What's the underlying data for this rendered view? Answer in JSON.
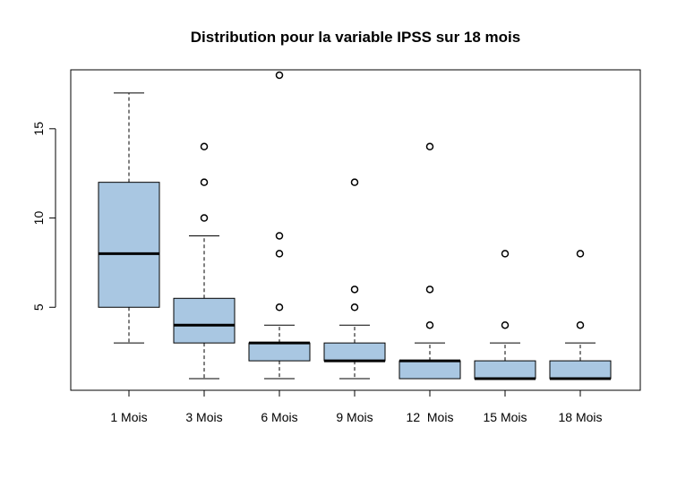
{
  "chart_data": {
    "type": "boxplot",
    "title": "Distribution pour la variable IPSS sur 18 mois",
    "xlabel": "",
    "ylabel": "",
    "ylim": [
      0.35,
      18.3
    ],
    "yticks": [
      5,
      10,
      15
    ],
    "grid": false,
    "box_color": "#a9c7e2",
    "categories": [
      "1 Mois",
      "3 Mois",
      "6 Mois",
      "9 Mois",
      "12  Mois",
      "15 Mois",
      "18 Mois"
    ],
    "boxes": [
      {
        "whisker_low": 3,
        "q1": 5,
        "median": 8,
        "q3": 12,
        "whisker_high": 17,
        "outliers": []
      },
      {
        "whisker_low": 1,
        "q1": 3,
        "median": 4,
        "q3": 5.5,
        "whisker_high": 9,
        "outliers": [
          10,
          12,
          14
        ]
      },
      {
        "whisker_low": 1,
        "q1": 2,
        "median": 3,
        "q3": 3,
        "whisker_high": 4,
        "outliers": [
          5,
          8,
          9,
          18
        ]
      },
      {
        "whisker_low": 1,
        "q1": 2,
        "median": 2,
        "q3": 3,
        "whisker_high": 4,
        "outliers": [
          5,
          6,
          12
        ]
      },
      {
        "whisker_low": 1,
        "q1": 1,
        "median": 2,
        "q3": 2,
        "whisker_high": 3,
        "outliers": [
          4,
          6,
          14
        ]
      },
      {
        "whisker_low": 1,
        "q1": 1,
        "median": 1,
        "q3": 2,
        "whisker_high": 3,
        "outliers": [
          4,
          8
        ]
      },
      {
        "whisker_low": 1,
        "q1": 1,
        "median": 1,
        "q3": 2,
        "whisker_high": 3,
        "outliers": [
          4,
          8
        ]
      }
    ]
  }
}
